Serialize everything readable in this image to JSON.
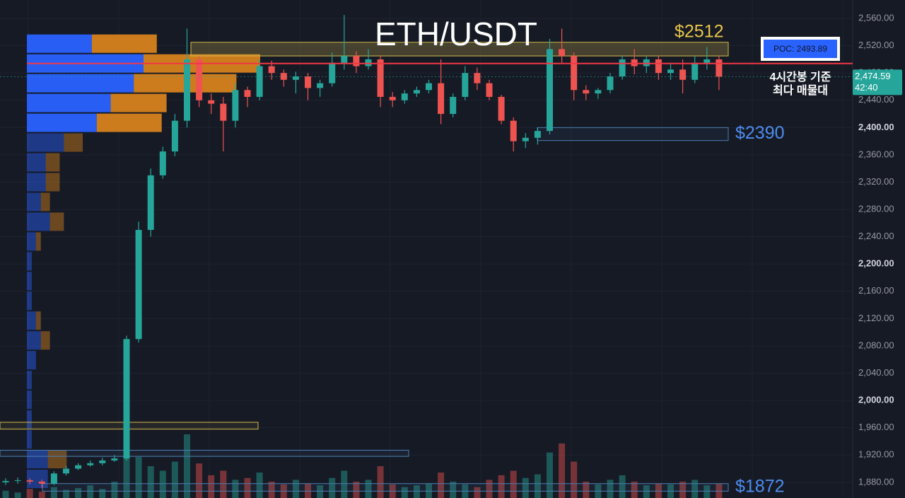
{
  "chart_data": {
    "type": "candlestick",
    "title": "ETH/USDT",
    "ylim": [
      1857,
      2587
    ],
    "yticks": [
      {
        "value": 1880,
        "label": "1,880.00"
      },
      {
        "value": 1920,
        "label": "1,920.00"
      },
      {
        "value": 1960,
        "label": "1,960.00"
      },
      {
        "value": 2000,
        "label": "2,000.00"
      },
      {
        "value": 2040,
        "label": "2,040.00"
      },
      {
        "value": 2080,
        "label": "2,080.00"
      },
      {
        "value": 2120,
        "label": "2,120.00"
      },
      {
        "value": 2160,
        "label": "2,160.00"
      },
      {
        "value": 2200,
        "label": "2,200.00"
      },
      {
        "value": 2240,
        "label": "2,240.00"
      },
      {
        "value": 2280,
        "label": "2,280.00"
      },
      {
        "value": 2320,
        "label": "2,320.00"
      },
      {
        "value": 2360,
        "label": "2,360.00"
      },
      {
        "value": 2400,
        "label": "2,400.00"
      },
      {
        "value": 2440,
        "label": "2,440.00"
      },
      {
        "value": 2480,
        "label": "2,480.00"
      },
      {
        "value": 2520,
        "label": "2,520.00"
      },
      {
        "value": 2560,
        "label": "2,560.00"
      }
    ],
    "grid": true,
    "up_color": "#26a69a",
    "down_color": "#ef5350",
    "open": [
      1880,
      1882,
      1883,
      1881,
      1878,
      1893,
      1900,
      1905,
      1908,
      1912,
      1915,
      2090,
      2250,
      2330,
      2365,
      2410,
      2500,
      2440,
      2435,
      2410,
      2455,
      2445,
      2490,
      2480,
      2470,
      2475,
      2458,
      2465,
      2495,
      2505,
      2490,
      2500,
      2445,
      2440,
      2450,
      2455,
      2465,
      2420,
      2445,
      2480,
      2465,
      2445,
      2410,
      2380,
      2385,
      2395,
      2515,
      2505,
      2455,
      2450,
      2455,
      2475,
      2500,
      2490,
      2500,
      2480,
      2485,
      2470,
      2495,
      2500
    ],
    "high": [
      1886,
      1887,
      1886,
      1884,
      1896,
      1904,
      1908,
      1912,
      1916,
      1920,
      2095,
      2262,
      2340,
      2372,
      2420,
      2545,
      2505,
      2450,
      2445,
      2465,
      2460,
      2500,
      2498,
      2485,
      2482,
      2480,
      2470,
      2510,
      2565,
      2512,
      2515,
      2505,
      2452,
      2455,
      2460,
      2470,
      2500,
      2450,
      2490,
      2488,
      2470,
      2448,
      2415,
      2392,
      2400,
      2530,
      2545,
      2510,
      2462,
      2458,
      2480,
      2505,
      2515,
      2505,
      2505,
      2495,
      2500,
      2505,
      2518,
      2505
    ],
    "low": [
      1876,
      1878,
      1877,
      1872,
      1876,
      1890,
      1898,
      1903,
      1905,
      1910,
      1912,
      2085,
      2240,
      2325,
      2358,
      2400,
      2430,
      2420,
      2365,
      2400,
      2430,
      2440,
      2470,
      2460,
      2450,
      2440,
      2445,
      2460,
      2485,
      2480,
      2485,
      2430,
      2430,
      2435,
      2445,
      2450,
      2405,
      2415,
      2440,
      2455,
      2440,
      2405,
      2365,
      2370,
      2375,
      2390,
      2495,
      2440,
      2440,
      2442,
      2450,
      2470,
      2478,
      2480,
      2470,
      2470,
      2450,
      2465,
      2485,
      2455
    ],
    "close": [
      1882,
      1883,
      1881,
      1878,
      1893,
      1900,
      1905,
      1908,
      1912,
      1915,
      2090,
      2250,
      2330,
      2365,
      2410,
      2500,
      2440,
      2435,
      2410,
      2455,
      2445,
      2490,
      2480,
      2470,
      2475,
      2458,
      2465,
      2495,
      2505,
      2490,
      2500,
      2445,
      2440,
      2450,
      2455,
      2465,
      2420,
      2445,
      2480,
      2465,
      2445,
      2410,
      2380,
      2385,
      2395,
      2515,
      2505,
      2455,
      2450,
      2455,
      2475,
      2500,
      2490,
      2500,
      2480,
      2485,
      2470,
      2495,
      2500,
      2474.59
    ],
    "volume": [
      8,
      6,
      10,
      7,
      12,
      9,
      11,
      14,
      10,
      18,
      60,
      45,
      35,
      30,
      40,
      70,
      38,
      25,
      30,
      20,
      22,
      28,
      18,
      15,
      20,
      16,
      14,
      22,
      30,
      18,
      20,
      35,
      15,
      12,
      14,
      16,
      28,
      18,
      15,
      12,
      20,
      25,
      30,
      22,
      26,
      50,
      60,
      40,
      18,
      15,
      20,
      25,
      18,
      14,
      16,
      15,
      18,
      20,
      14,
      16
    ],
    "volume_profile": {
      "levels": [
        2523,
        2494,
        2465,
        2436,
        2407,
        2378,
        2349,
        2320,
        2291,
        2262,
        2233,
        2204,
        2175,
        2146,
        2117,
        2088,
        2059,
        2030,
        2001,
        1972,
        1943,
        1914,
        1885
      ],
      "buy": [
        93,
        167,
        153,
        120,
        100,
        53,
        27,
        27,
        20,
        33,
        13,
        7,
        7,
        7,
        13,
        20,
        13,
        7,
        7,
        7,
        7,
        30,
        30
      ],
      "sell": [
        93,
        167,
        147,
        80,
        93,
        27,
        20,
        20,
        13,
        20,
        7,
        0,
        0,
        0,
        7,
        13,
        0,
        0,
        0,
        0,
        0,
        27,
        0
      ]
    },
    "poc": {
      "value": 2493.89,
      "label": "POC: 2493.89",
      "note": [
        "4시간봉 기준",
        "최다 매물대"
      ]
    },
    "zones": [
      {
        "low": 2505,
        "high": 2525,
        "label": "$2512",
        "color": "#d4b94a"
      },
      {
        "low": 2381,
        "high": 2400,
        "label": "$2390",
        "color": "#4c7fb3"
      },
      {
        "low": 1958,
        "high": 1968,
        "color": "#d4b94a"
      },
      {
        "low": 1918,
        "high": 1927,
        "color": "#4c7fb3"
      },
      {
        "low": 1867,
        "high": 1878,
        "label": "$1872",
        "color": "#4c7fb3"
      }
    ],
    "last_price": {
      "value": 2474.59,
      "label": "2,474.59",
      "countdown": "42:40"
    }
  }
}
